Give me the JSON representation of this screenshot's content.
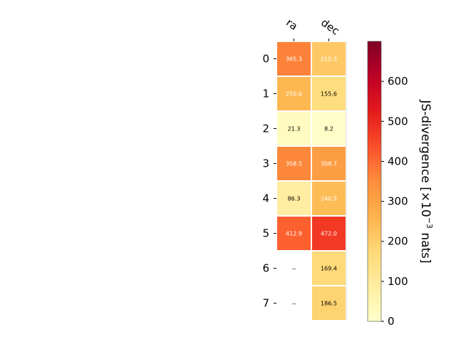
{
  "chart_data": {
    "type": "heatmap",
    "columns": [
      "ra",
      "dec"
    ],
    "rows": [
      "0",
      "1",
      "2",
      "3",
      "4",
      "5",
      "6",
      "7"
    ],
    "values": [
      [
        365.3,
        210.3
      ],
      [
        250.0,
        155.6
      ],
      [
        21.3,
        8.2
      ],
      [
        358.5,
        308.7
      ],
      [
        86.3,
        240.5
      ],
      [
        412.9,
        472.0
      ],
      [
        null,
        169.4
      ],
      [
        null,
        186.5
      ]
    ],
    "cell_labels": [
      [
        "365.3",
        "210.3"
      ],
      [
        "250.0",
        "155.6"
      ],
      [
        "21.3",
        "8.2"
      ],
      [
        "358.5",
        "308.7"
      ],
      [
        "86.3",
        "240.5"
      ],
      [
        "412.9",
        "472.0"
      ],
      [
        "--",
        "169.4"
      ],
      [
        "--",
        "186.5"
      ]
    ],
    "colorbar": {
      "label_prefix": "JS-divergence [×10",
      "label_exponent": "−3",
      "label_suffix": " nats]",
      "range": [
        0,
        700
      ],
      "ticks": [
        0,
        100,
        200,
        300,
        400,
        500,
        600
      ],
      "tick_labels": [
        "0",
        "100",
        "200",
        "300",
        "400",
        "500",
        "600"
      ],
      "colormap": "YlOrRd"
    },
    "missing_color": "#ffffff",
    "grid": false
  }
}
